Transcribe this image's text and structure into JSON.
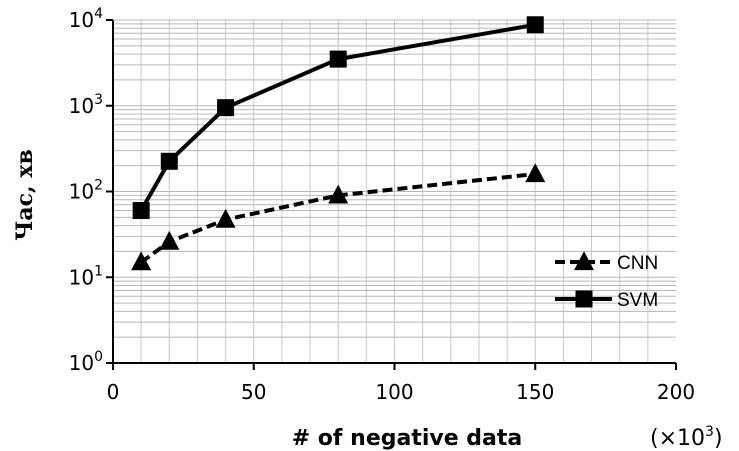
{
  "chart_data": {
    "type": "line",
    "xlabel": "# of negative data",
    "x_unit": "(×10",
    "x_unit_exp": "3",
    "x_unit_close": ")",
    "ylabel": "Час, хв",
    "y_scale": "log",
    "xlim": [
      0,
      200
    ],
    "ylim": [
      1,
      10000
    ],
    "x_ticks": [
      "0",
      "50",
      "100",
      "150",
      "200"
    ],
    "y_ticks": [
      {
        "base": "10",
        "exp": "0"
      },
      {
        "base": "10",
        "exp": "1"
      },
      {
        "base": "10",
        "exp": "2"
      },
      {
        "base": "10",
        "exp": "3"
      },
      {
        "base": "10",
        "exp": "4"
      }
    ],
    "grid": true,
    "legend_position": "right",
    "series": [
      {
        "name": "CNN",
        "style": "dashed",
        "marker": "triangle",
        "color": "#000000",
        "x": [
          10,
          20,
          40,
          80,
          150
        ],
        "y": [
          15,
          26,
          47,
          90,
          160
        ]
      },
      {
        "name": "SVM",
        "style": "solid",
        "marker": "square",
        "color": "#000000",
        "x": [
          10,
          20,
          40,
          80,
          150
        ],
        "y": [
          60,
          225,
          950,
          3500,
          8800
        ]
      }
    ]
  }
}
